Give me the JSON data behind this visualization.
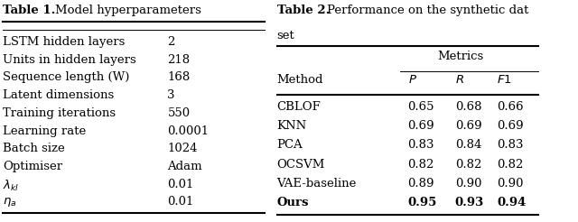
{
  "table1_title": "Table 1.",
  "table1_subtitle": "Model hyperparameters",
  "table1_rows": [
    [
      "LSTM hidden layers",
      "2"
    ],
    [
      "Units in hidden layers",
      "218"
    ],
    [
      "Sequence length (W)",
      "168"
    ],
    [
      "Latent dimensions",
      "3"
    ],
    [
      "Training iterations",
      "550"
    ],
    [
      "Learning rate",
      "0.0001"
    ],
    [
      "Batch size",
      "1024"
    ],
    [
      "Optimiser",
      "Adam"
    ],
    [
      "lambda_kl",
      "0.01"
    ],
    [
      "eta_a",
      "0.01"
    ]
  ],
  "table2_title": "Table 2.",
  "table2_subtitle": "Performance on the synthetic dataset",
  "table2_header_top": "Metrics",
  "table2_header_cols": [
    "Method",
    "P",
    "R",
    "F1"
  ],
  "table2_rows": [
    [
      "CBLOF",
      "0.65",
      "0.68",
      "0.66"
    ],
    [
      "KNN",
      "0.69",
      "0.69",
      "0.69"
    ],
    [
      "PCA",
      "0.83",
      "0.84",
      "0.83"
    ],
    [
      "OCSVM",
      "0.82",
      "0.82",
      "0.82"
    ],
    [
      "VAE-baseline",
      "0.89",
      "0.90",
      "0.90"
    ],
    [
      "Ours",
      "0.95",
      "0.93",
      "0.94"
    ]
  ],
  "bg_color": "#ffffff",
  "font_size": 9.5,
  "title_font_size": 9.5
}
